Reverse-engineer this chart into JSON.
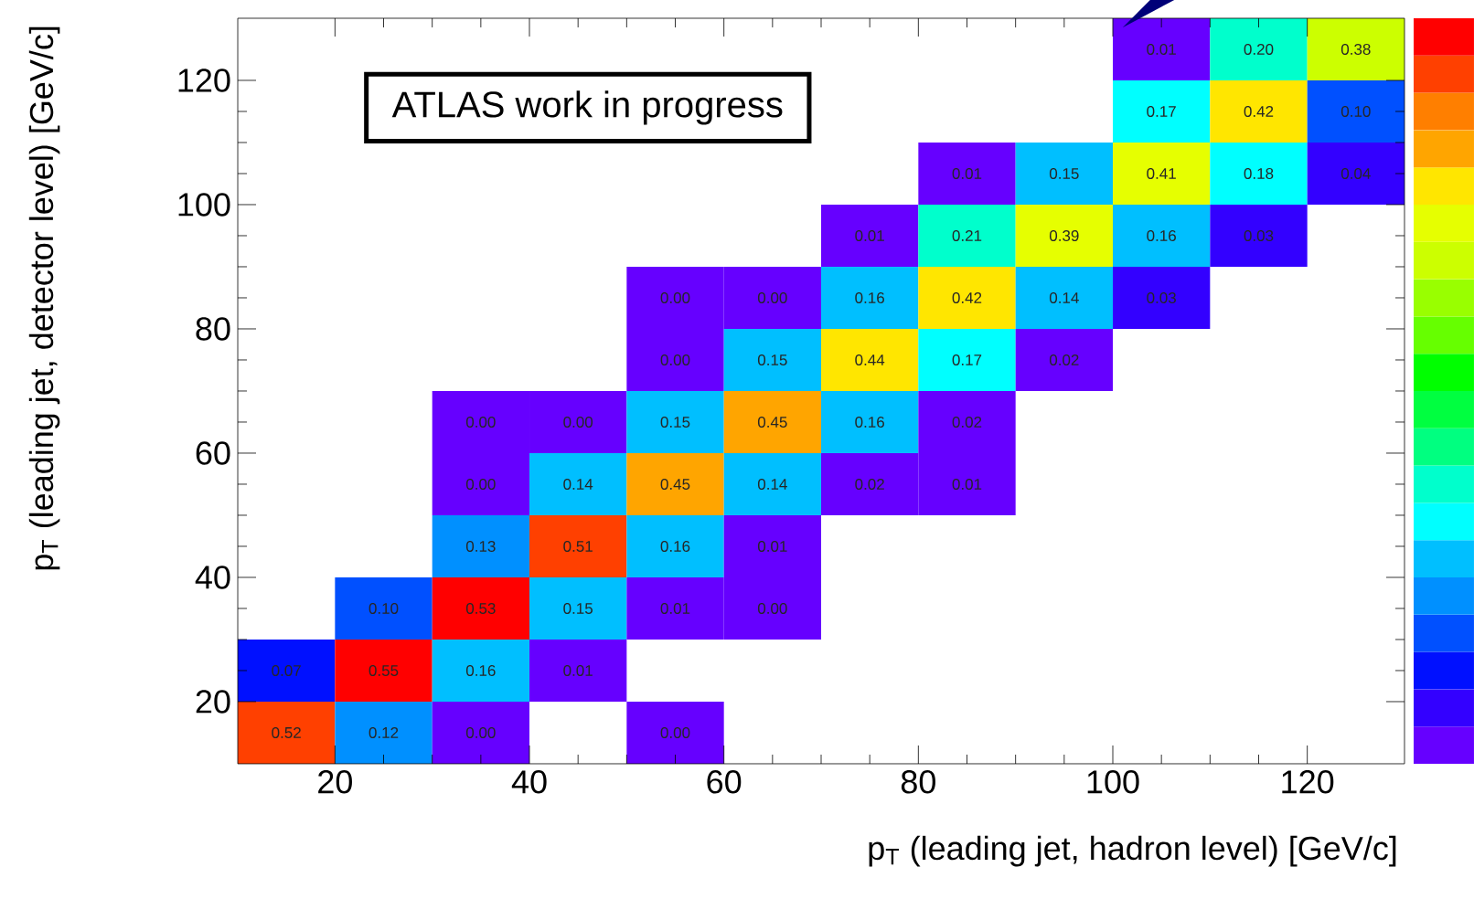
{
  "chart_data": {
    "type": "heatmap",
    "xlabel": "p$_{T}$ (leading jet, hadron level) [GeV/c]",
    "ylabel": "p$_{T}$ (leading jet, detector level) [GeV/c]",
    "annotations": [
      "ATLAS work in progress"
    ],
    "x": [
      15,
      25,
      35,
      45,
      55,
      65,
      75,
      85,
      95,
      105,
      115,
      125
    ],
    "y": [
      125,
      115,
      105,
      95,
      85,
      75,
      65,
      55,
      45,
      35,
      25,
      15
    ],
    "xlim": [
      10,
      130
    ],
    "ylim": [
      10,
      130
    ],
    "xticks": [
      20,
      40,
      60,
      80,
      100,
      120
    ],
    "yticks": [
      20,
      40,
      60,
      80,
      100,
      120
    ],
    "grid": false,
    "cell_labels": [
      [
        null,
        null,
        null,
        null,
        null,
        null,
        null,
        null,
        null,
        "0.01",
        "0.20",
        "0.38"
      ],
      [
        null,
        null,
        null,
        null,
        null,
        null,
        null,
        null,
        null,
        "0.17",
        "0.42",
        "0.10"
      ],
      [
        null,
        null,
        null,
        null,
        null,
        null,
        null,
        "0.01",
        "0.15",
        "0.41",
        "0.18",
        "0.04"
      ],
      [
        null,
        null,
        null,
        null,
        null,
        null,
        "0.01",
        "0.21",
        "0.39",
        "0.16",
        "0.03",
        null
      ],
      [
        null,
        null,
        null,
        null,
        "0.00",
        "0.00",
        "0.16",
        "0.42",
        "0.14",
        "0.03",
        null,
        null
      ],
      [
        null,
        null,
        null,
        null,
        "0.00",
        "0.15",
        "0.44",
        "0.17",
        "0.02",
        null,
        null,
        null
      ],
      [
        null,
        null,
        "0.00",
        "0.00",
        "0.15",
        "0.45",
        "0.16",
        "0.02",
        null,
        null,
        null,
        null
      ],
      [
        null,
        null,
        "0.00",
        "0.14",
        "0.45",
        "0.14",
        "0.02",
        "0.01",
        null,
        null,
        null,
        null
      ],
      [
        null,
        null,
        "0.13",
        "0.51",
        "0.16",
        "0.01",
        null,
        null,
        null,
        null,
        null,
        null
      ],
      [
        null,
        "0.10",
        "0.53",
        "0.15",
        "0.01",
        "0.00",
        null,
        null,
        null,
        null,
        null,
        null
      ],
      [
        "0.07",
        "0.55",
        "0.16",
        "0.01",
        null,
        null,
        null,
        null,
        null,
        null,
        null,
        null
      ],
      [
        "0.52",
        "0.12",
        "0.00",
        null,
        "0.00",
        null,
        null,
        null,
        null,
        null,
        null,
        null
      ]
    ],
    "cells": [
      [
        null,
        null,
        null,
        null,
        null,
        null,
        null,
        null,
        null,
        0.01,
        0.2,
        0.38
      ],
      [
        null,
        null,
        null,
        null,
        null,
        null,
        null,
        null,
        null,
        0.17,
        0.42,
        0.1
      ],
      [
        null,
        null,
        null,
        null,
        null,
        null,
        null,
        0.01,
        0.15,
        0.41,
        0.18,
        0.04
      ],
      [
        null,
        null,
        null,
        null,
        null,
        null,
        0.01,
        0.21,
        0.39,
        0.16,
        0.03,
        null
      ],
      [
        null,
        null,
        null,
        null,
        0.0,
        0.0,
        0.16,
        0.42,
        0.14,
        0.03,
        null,
        null
      ],
      [
        null,
        null,
        null,
        null,
        0.0,
        0.15,
        0.44,
        0.17,
        0.02,
        null,
        null,
        null
      ],
      [
        null,
        null,
        0.0,
        0.0,
        0.15,
        0.45,
        0.16,
        0.02,
        null,
        null,
        null,
        null
      ],
      [
        null,
        null,
        0.0,
        0.14,
        0.45,
        0.14,
        0.02,
        0.01,
        null,
        null,
        null,
        null
      ],
      [
        null,
        null,
        0.13,
        0.51,
        0.16,
        0.01,
        null,
        null,
        null,
        null,
        null,
        null
      ],
      [
        null,
        0.1,
        0.53,
        0.15,
        0.01,
        0.0,
        null,
        null,
        null,
        null,
        null,
        null
      ],
      [
        0.07,
        0.55,
        0.16,
        0.01,
        null,
        null,
        null,
        null,
        null,
        null,
        null,
        null
      ],
      [
        0.52,
        0.12,
        0.0,
        null,
        0.0,
        null,
        null,
        null,
        null,
        null,
        null,
        null
      ]
    ]
  }
}
